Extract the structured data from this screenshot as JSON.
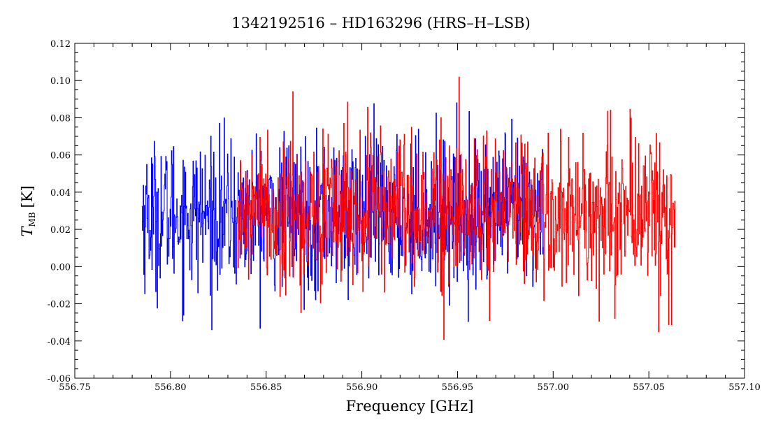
{
  "chart_data": {
    "type": "line",
    "title": "1342192516 – HD163296 (HRS–H–LSB)",
    "xlabel": "Frequency [GHz]",
    "ylabel_main": "T",
    "ylabel_sub": "MB",
    "ylabel_unit": "[K]",
    "xlim": [
      556.75,
      557.1
    ],
    "ylim": [
      -0.06,
      0.12
    ],
    "x_ticks": [
      "556.75",
      "556.80",
      "556.85",
      "556.90",
      "556.95",
      "557.00",
      "557.05",
      "557.10"
    ],
    "y_ticks": [
      "-0.06",
      "-0.04",
      "-0.02",
      "0.00",
      "0.02",
      "0.04",
      "0.06",
      "0.08",
      "0.10",
      "0.12"
    ],
    "grid": false,
    "series": [
      {
        "color": "#0000ff",
        "x_start": 556.785,
        "x_end": 556.995,
        "n_points": 840,
        "mean": 0.028,
        "spread": 0.02,
        "min": -0.034,
        "max": 0.092
      },
      {
        "color": "#ff0000",
        "x_start": 556.835,
        "x_end": 557.064,
        "n_points": 920,
        "mean": 0.03,
        "spread": 0.021,
        "min": -0.046,
        "max": 0.108
      }
    ]
  }
}
